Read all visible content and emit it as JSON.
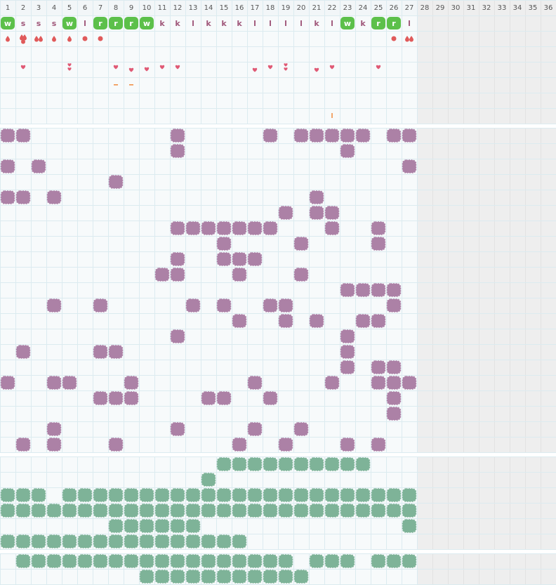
{
  "header": {
    "columns": [
      "1",
      "2",
      "3",
      "4",
      "5",
      "6",
      "7",
      "8",
      "9",
      "10",
      "11",
      "12",
      "13",
      "14",
      "15",
      "16",
      "17",
      "18",
      "19",
      "20",
      "21",
      "22",
      "23",
      "24",
      "25",
      "26",
      "27",
      "28",
      "29",
      "30",
      "31",
      "32",
      "33",
      "34",
      "35",
      "36"
    ]
  },
  "letters": [
    "w",
    "s",
    "s",
    "s",
    "w",
    "l",
    "r",
    "r",
    "r",
    "w",
    "k",
    "k",
    "l",
    "k",
    "k",
    "k",
    "l",
    "l",
    "l",
    "l",
    "k",
    "l",
    "w",
    "k",
    "r",
    "r",
    "l"
  ]
}
